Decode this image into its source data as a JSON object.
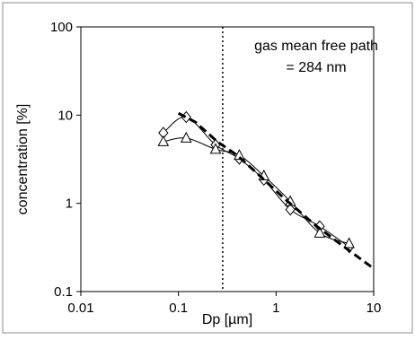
{
  "chart_data": {
    "type": "scatter",
    "title": "",
    "xlabel": "Dp [µm]",
    "ylabel": "concentration [%]",
    "x_scale": "log",
    "y_scale": "log",
    "xlim": [
      0.01,
      10
    ],
    "ylim": [
      0.1,
      100
    ],
    "x_ticks": [
      {
        "value": 0.01,
        "label": "0.01"
      },
      {
        "value": 0.1,
        "label": "0.1"
      },
      {
        "value": 1,
        "label": "1"
      },
      {
        "value": 10,
        "label": "10"
      }
    ],
    "y_ticks": [
      {
        "value": 0.1,
        "label": "0.1"
      },
      {
        "value": 1,
        "label": "1"
      },
      {
        "value": 10,
        "label": "10"
      },
      {
        "value": 100,
        "label": "100"
      }
    ],
    "grid": false,
    "series": [
      {
        "marker": "diamond",
        "line": "solid",
        "x": [
          0.07,
          0.12,
          0.24,
          0.42,
          0.75,
          1.4,
          2.8,
          5.6
        ],
        "y": [
          6.3,
          9.5,
          4.6,
          3.2,
          1.85,
          0.85,
          0.55,
          0.32
        ]
      },
      {
        "marker": "triangle",
        "line": "solid",
        "x": [
          0.07,
          0.12,
          0.24,
          0.42,
          0.75,
          1.4,
          2.8,
          5.6
        ],
        "y": [
          5.0,
          5.5,
          4.1,
          3.5,
          2.05,
          1.05,
          0.46,
          0.35
        ]
      },
      {
        "marker": "none",
        "line": "dashed-bold",
        "x": [
          0.1,
          0.15,
          0.25,
          0.4,
          0.7,
          1.2,
          2.5,
          5.0,
          9.5
        ],
        "y": [
          10.5,
          8.3,
          5.0,
          3.5,
          2.0,
          1.15,
          0.57,
          0.32,
          0.19
        ]
      }
    ],
    "reference_line": {
      "x": 0.284,
      "style": "dotted"
    },
    "annotation": {
      "line1": "gas mean free path",
      "line2": "= 284 nm"
    }
  }
}
